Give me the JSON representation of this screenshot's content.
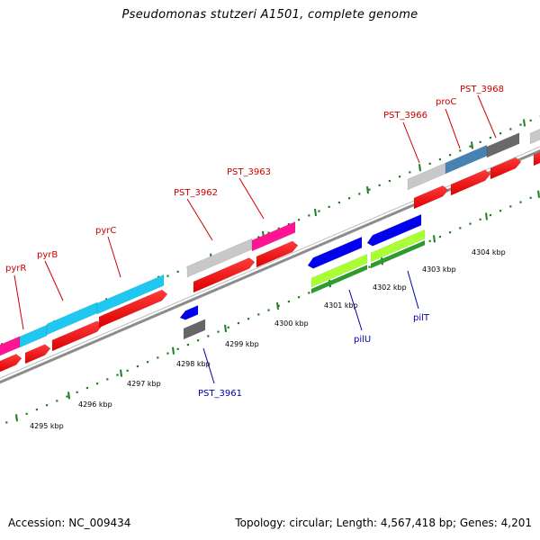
{
  "title": "Pseudomonas stutzeri A1501, complete genome",
  "footer": {
    "accession": "Accession: NC_009434",
    "topology": "Topology: circular; Length: 4,567,418 bp; Genes: 4,201"
  },
  "colors": {
    "backbone": "#8c8c8c",
    "tick": "#1e7f1e",
    "forward_label": "#cc0000",
    "reverse_label": "#0000aa"
  },
  "kbp_labels": [
    {
      "text": "4295 kbp"
    },
    {
      "text": "4296 kbp"
    },
    {
      "text": "4297 kbp"
    },
    {
      "text": "4298 kbp"
    },
    {
      "text": "4299 kbp"
    },
    {
      "text": "4300 kbp"
    },
    {
      "text": "4301 kbp"
    },
    {
      "text": "4302 kbp"
    },
    {
      "text": "4303 kbp"
    },
    {
      "text": "4304 kbp"
    }
  ],
  "genes": [
    {
      "label": "pyrR",
      "strand": "forward",
      "cog_color": "#ff1493"
    },
    {
      "label": "pyrB",
      "strand": "forward",
      "cog_color": "#1ec8f0"
    },
    {
      "label": "pyrC",
      "strand": "forward",
      "cog_color": "#1ec8f0"
    },
    {
      "label": "PST_3962",
      "strand": "forward",
      "cog_color": "#c8c8c8"
    },
    {
      "label": "PST_3963",
      "strand": "forward",
      "cog_color": "#ff1493"
    },
    {
      "label": "PST_3961",
      "strand": "reverse",
      "cog_color": "#0000ee"
    },
    {
      "label": "pilU",
      "strand": "reverse",
      "cog_color": "#0000ee"
    },
    {
      "label": "pilT",
      "strand": "reverse",
      "cog_color": "#0000ee"
    },
    {
      "label": "PST_3966",
      "strand": "forward",
      "cog_color": "#c8c8c8"
    },
    {
      "label": "proC",
      "strand": "forward",
      "cog_color": "#4682b4"
    },
    {
      "label": "PST_3968",
      "strand": "forward",
      "cog_color": "#696969"
    }
  ]
}
